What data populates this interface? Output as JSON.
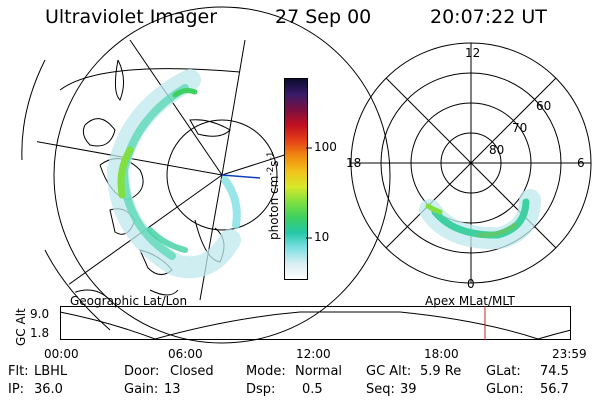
{
  "header": {
    "instrument": "Ultraviolet Imager",
    "date": "27 Sep 00",
    "time": "20:07:22 UT"
  },
  "colorbar": {
    "unit_label": "photon cm",
    "unit_exp1": "-2",
    "unit_s": "s",
    "unit_exp2": "-1",
    "ticks": [
      "100",
      "10"
    ],
    "colors": [
      "#0b0b2e",
      "#3a1a6a",
      "#7a1040",
      "#c01020",
      "#e44018",
      "#f08a10",
      "#f2c21a",
      "#d8e82a",
      "#7fe040",
      "#3ed060",
      "#24c8a8",
      "#7fe0e4",
      "#d8eef2",
      "#ffffff"
    ]
  },
  "polar_plot": {
    "labels": [
      "12",
      "60",
      "70",
      "80",
      "18",
      "6",
      "0"
    ]
  },
  "altitude_panel": {
    "left_label": "Geographic Lat/Lon",
    "right_label": "Apex MLat/MLT",
    "y_axis_label": "GC Alt",
    "y_ticks": [
      "9.0",
      "1.8"
    ],
    "x_ticks": [
      "00:00",
      "06:00",
      "12:00",
      "18:00",
      "23:59"
    ],
    "marker_color": "#d02020"
  },
  "info": {
    "flt_label": "Flt:",
    "flt_value": "LBHL",
    "ip_label": "IP:",
    "ip_value": "36.0",
    "door_label": "Door:",
    "door_value": "Closed",
    "gain_label": "Gain:",
    "gain_value": "13",
    "mode_label": "Mode:",
    "mode_value": "Normal",
    "dsp_label": "Dsp:",
    "dsp_value": "0.5",
    "gcalt_label": "GC Alt:",
    "gcalt_value": "5.9 Re",
    "seq_label": "Seq:",
    "seq_value": "39",
    "glat_label": "GLat:",
    "glat_value": "74.5",
    "glon_label": "GLon:",
    "glon_value": "56.7"
  }
}
